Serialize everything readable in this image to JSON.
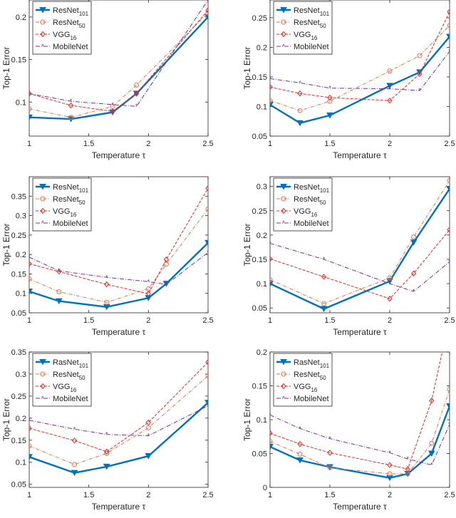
{
  "colors": {
    "ResNet101": "#0072BD",
    "ResNet50": "#E8734A",
    "VGG16": "#FF2020",
    "MobileNet": "#7E2F8E"
  },
  "chart_data": [
    {
      "type": "line",
      "xlabel": "Temperature τ",
      "ylabel": "Top-1 Error",
      "xlim": [
        1,
        2.5
      ],
      "ylim": [
        0.06,
        0.22
      ],
      "xticks": [
        1,
        1.5,
        2,
        2.5
      ],
      "yticks": [
        0.1,
        0.15,
        0.2
      ],
      "legend": [
        {
          "base": "ResNet",
          "sub": "101"
        },
        {
          "base": "ResNet",
          "sub": "50"
        },
        {
          "base": "VGG",
          "sub": "16"
        },
        {
          "base": "MobileNet",
          "sub": ""
        }
      ],
      "legend_position": "top-left",
      "series": [
        {
          "name": "ResNet101",
          "x": [
            1,
            1.35,
            1.7,
            1.9,
            2.5
          ],
          "y": [
            0.082,
            0.08,
            0.088,
            0.11,
            0.2
          ]
        },
        {
          "name": "ResNet50",
          "x": [
            1,
            1.35,
            1.7,
            1.9,
            2.5
          ],
          "y": [
            0.092,
            0.082,
            0.095,
            0.12,
            0.205
          ]
        },
        {
          "name": "VGG16",
          "x": [
            1,
            1.35,
            1.7,
            1.9,
            2.5
          ],
          "y": [
            0.11,
            0.096,
            0.089,
            0.11,
            0.208
          ]
        },
        {
          "name": "MobileNet",
          "x": [
            1,
            1.35,
            1.7,
            1.9,
            2.5
          ],
          "y": [
            0.11,
            0.101,
            0.097,
            0.095,
            0.22
          ]
        }
      ]
    },
    {
      "type": "line",
      "xlabel": "Temperature τ",
      "ylabel": "Top-1 Error",
      "xlim": [
        1,
        2.5
      ],
      "ylim": [
        0.05,
        0.28
      ],
      "xticks": [
        1,
        1.5,
        2,
        2.5
      ],
      "yticks": [
        0.05,
        0.1,
        0.15,
        0.2,
        0.25
      ],
      "legend": [
        {
          "base": "ResNet",
          "sub": "101"
        },
        {
          "base": "ResNet",
          "sub": "50"
        },
        {
          "base": "VGG",
          "sub": "16"
        },
        {
          "base": "MobileNet",
          "sub": ""
        }
      ],
      "legend_position": "top-left",
      "series": [
        {
          "name": "ResNet101",
          "x": [
            1,
            1.25,
            1.5,
            2,
            2.25,
            2.5
          ],
          "y": [
            0.103,
            0.072,
            0.085,
            0.135,
            0.158,
            0.218
          ]
        },
        {
          "name": "ResNet50",
          "x": [
            1,
            1.25,
            1.5,
            2,
            2.25,
            2.5
          ],
          "y": [
            0.11,
            0.093,
            0.109,
            0.16,
            0.186,
            0.237
          ]
        },
        {
          "name": "VGG16",
          "x": [
            1,
            1.25,
            1.5,
            2,
            2.25,
            2.5
          ],
          "y": [
            0.133,
            0.122,
            0.115,
            0.11,
            0.155,
            0.26
          ]
        },
        {
          "name": "MobileNet",
          "x": [
            1,
            1.25,
            1.5,
            2,
            2.25,
            2.5
          ],
          "y": [
            0.147,
            0.14,
            0.131,
            0.13,
            0.127,
            0.193
          ]
        }
      ]
    },
    {
      "type": "line",
      "xlabel": "Temperature τ",
      "ylabel": "Top-1 Error",
      "xlim": [
        1,
        2.5
      ],
      "ylim": [
        0.05,
        0.4
      ],
      "xticks": [
        1,
        1.5,
        2,
        2.5
      ],
      "yticks": [
        0.05,
        0.1,
        0.15,
        0.2,
        0.25,
        0.3,
        0.35
      ],
      "legend": [
        {
          "base": "ResNet",
          "sub": "101"
        },
        {
          "base": "ResNet",
          "sub": "50"
        },
        {
          "base": "VGG",
          "sub": "16"
        },
        {
          "base": "MobileNet",
          "sub": ""
        }
      ],
      "legend_position": "top-left",
      "series": [
        {
          "name": "ResNet101",
          "x": [
            1,
            1.25,
            1.65,
            2,
            2.15,
            2.5
          ],
          "y": [
            0.105,
            0.08,
            0.065,
            0.088,
            0.125,
            0.23
          ]
        },
        {
          "name": "ResNet50",
          "x": [
            1,
            1.25,
            1.65,
            2,
            2.15,
            2.5
          ],
          "y": [
            0.137,
            0.104,
            0.077,
            0.112,
            0.175,
            0.317
          ]
        },
        {
          "name": "VGG16",
          "x": [
            1,
            1.25,
            1.65,
            2,
            2.15,
            2.5
          ],
          "y": [
            0.176,
            0.156,
            0.123,
            0.099,
            0.187,
            0.37
          ]
        },
        {
          "name": "MobileNet",
          "x": [
            1,
            1.25,
            1.65,
            2,
            2.15,
            2.5
          ],
          "y": [
            0.193,
            0.158,
            0.141,
            0.13,
            0.123,
            0.205
          ]
        }
      ]
    },
    {
      "type": "line",
      "xlabel": "Temperature τ",
      "ylabel": "Top-1 Error",
      "xlim": [
        1,
        2.5
      ],
      "ylim": [
        0.04,
        0.32
      ],
      "xticks": [
        1,
        1.5,
        2,
        2.5
      ],
      "yticks": [
        0.05,
        0.1,
        0.15,
        0.2,
        0.25,
        0.3
      ],
      "legend": [
        {
          "base": "ResNet",
          "sub": "101"
        },
        {
          "base": "ResNet",
          "sub": "50"
        },
        {
          "base": "VGG",
          "sub": "16"
        },
        {
          "base": "MobileNet",
          "sub": ""
        }
      ],
      "legend_position": "top-left",
      "series": [
        {
          "name": "ResNet101",
          "x": [
            1,
            1.45,
            2,
            2.2,
            2.5
          ],
          "y": [
            0.1,
            0.048,
            0.105,
            0.185,
            0.295
          ]
        },
        {
          "name": "ResNet50",
          "x": [
            1,
            1.45,
            2,
            2.2,
            2.5
          ],
          "y": [
            0.108,
            0.059,
            0.112,
            0.196,
            0.312
          ]
        },
        {
          "name": "VGG16",
          "x": [
            1,
            1.45,
            2,
            2.2,
            2.5
          ],
          "y": [
            0.151,
            0.114,
            0.069,
            0.121,
            0.211
          ]
        },
        {
          "name": "MobileNet",
          "x": [
            1,
            1.45,
            2,
            2.2,
            2.5
          ],
          "y": [
            0.183,
            0.15,
            0.1,
            0.084,
            0.145
          ]
        }
      ]
    },
    {
      "type": "line",
      "xlabel": "Temperature τ",
      "ylabel": "Top-1 Error",
      "xlim": [
        1,
        2.5
      ],
      "ylim": [
        0.043,
        0.35
      ],
      "xticks": [
        1,
        1.5,
        2,
        2.5
      ],
      "yticks": [
        0.05,
        0.1,
        0.15,
        0.2,
        0.25,
        0.3,
        0.35
      ],
      "legend": [
        {
          "base": "RasNet",
          "sub": "101"
        },
        {
          "base": "ResNet",
          "sub": "50"
        },
        {
          "base": "VGG",
          "sub": "16"
        },
        {
          "base": "MobileNet",
          "sub": ""
        }
      ],
      "legend_position": "top-left",
      "series": [
        {
          "name": "ResNet101",
          "x": [
            1,
            1.38,
            1.65,
            2,
            2.5
          ],
          "y": [
            0.112,
            0.076,
            0.09,
            0.114,
            0.235
          ]
        },
        {
          "name": "ResNet50",
          "x": [
            1,
            1.38,
            1.65,
            2,
            2.5
          ],
          "y": [
            0.137,
            0.095,
            0.12,
            0.178,
            0.296
          ]
        },
        {
          "name": "VGG16",
          "x": [
            1,
            1.38,
            1.65,
            2,
            2.5
          ],
          "y": [
            0.177,
            0.149,
            0.124,
            0.19,
            0.327
          ]
        },
        {
          "name": "MobileNet",
          "x": [
            1,
            1.38,
            1.65,
            2,
            2.5
          ],
          "y": [
            0.195,
            0.175,
            0.163,
            0.16,
            0.228
          ]
        }
      ]
    },
    {
      "type": "line",
      "xlabel": "Temperature τ",
      "ylabel": "Top-1 Error",
      "xlim": [
        1,
        2.5
      ],
      "ylim": [
        0,
        0.2
      ],
      "xticks": [
        1,
        1.5,
        2,
        2.5
      ],
      "yticks": [
        0,
        0.05,
        0.1,
        0.15,
        0.2
      ],
      "legend": [
        {
          "base": "RasNet",
          "sub": "101"
        },
        {
          "base": "ResNet",
          "sub": "50"
        },
        {
          "base": "VGG",
          "sub": "16"
        },
        {
          "base": "MobileNet",
          "sub": ""
        }
      ],
      "legend_position": "top-left",
      "series": [
        {
          "name": "ResNet101",
          "x": [
            1,
            1.25,
            1.5,
            2,
            2.15,
            2.35,
            2.5
          ],
          "y": [
            0.06,
            0.04,
            0.03,
            0.014,
            0.02,
            0.05,
            0.12
          ]
        },
        {
          "name": "ResNet50",
          "x": [
            1,
            1.25,
            1.5,
            2,
            2.15,
            2.35,
            2.5
          ],
          "y": [
            0.068,
            0.049,
            0.029,
            0.02,
            0.02,
            0.065,
            0.145
          ]
        },
        {
          "name": "VGG16",
          "x": [
            1,
            1.25,
            1.5,
            2,
            2.15,
            2.35,
            2.5
          ],
          "y": [
            0.08,
            0.064,
            0.051,
            0.033,
            0.027,
            0.128,
            0.25
          ]
        },
        {
          "name": "MobileNet",
          "x": [
            1,
            1.25,
            1.5,
            2,
            2.15,
            2.35,
            2.5
          ],
          "y": [
            0.107,
            0.087,
            0.072,
            0.051,
            0.042,
            0.033,
            0.093
          ]
        }
      ]
    }
  ]
}
